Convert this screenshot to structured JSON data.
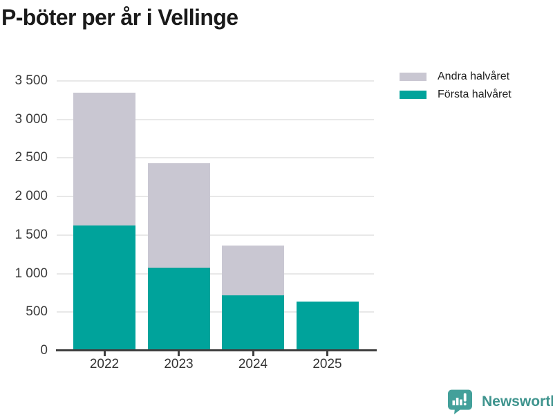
{
  "title": "P-böter per år i Vellinge",
  "legend": {
    "items": [
      {
        "label": "Andra halvåret",
        "color": "#c9c7d2"
      },
      {
        "label": "Första halvåret",
        "color": "#00a39b"
      }
    ]
  },
  "chart_data": {
    "type": "bar",
    "stacked": true,
    "title": "P-böter per år i Vellinge",
    "categories": [
      "2022",
      "2023",
      "2024",
      "2025"
    ],
    "series": [
      {
        "name": "Första halvåret",
        "color": "#00a39b",
        "values": [
          1620,
          1080,
          720,
          640
        ]
      },
      {
        "name": "Andra halvåret",
        "color": "#c9c7d2",
        "values": [
          1730,
          1350,
          640,
          0
        ]
      }
    ],
    "totals": [
      3350,
      2430,
      1360,
      640
    ],
    "xlabel": "",
    "ylabel": "",
    "ylim": [
      0,
      3500
    ],
    "ytick_step": 500,
    "ytick_labels": [
      "0",
      "500",
      "1 000",
      "1 500",
      "2 000",
      "2 500",
      "3 000",
      "3 500"
    ],
    "grid": true,
    "legend_position": "top-right",
    "colors": {
      "grid": "#e8e8e8",
      "axis": "#3e3e3e",
      "tick_text": "#3b3b3b"
    }
  },
  "footer": {
    "brand": "Newsworthy",
    "logo_icon": "bar-chart-speech-bubble",
    "logo_color": "#43a09a"
  }
}
